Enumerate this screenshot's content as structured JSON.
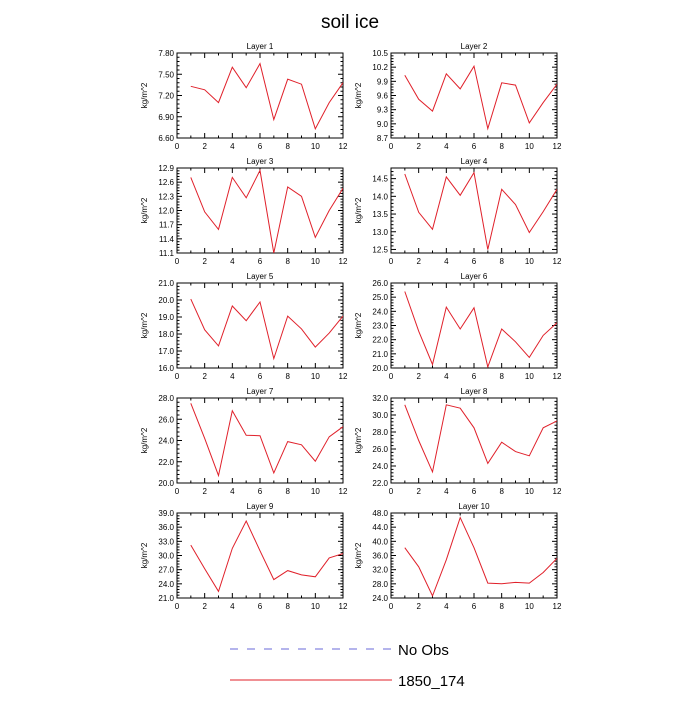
{
  "title": "soil ice",
  "legend": [
    {
      "label": "No Obs",
      "style": "dashed",
      "color": "#6a6ad8"
    },
    {
      "label": "1850_174",
      "style": "solid",
      "color": "#e0202a"
    }
  ],
  "chart_data": [
    {
      "type": "line",
      "title": "Layer 1",
      "ylabel": "kg/m^2",
      "xlim": [
        0,
        12
      ],
      "ylim": [
        6.6,
        7.8
      ],
      "yticks": [
        "6.60",
        "6.90",
        "7.20",
        "7.50",
        "7.80"
      ],
      "xticks": [
        "0",
        "2",
        "4",
        "6",
        "8",
        "10",
        "12"
      ],
      "series": [
        {
          "x": [
            1,
            2,
            3,
            4,
            5,
            6,
            7,
            8,
            9,
            10,
            11,
            12
          ],
          "values": [
            7.33,
            7.28,
            7.1,
            7.6,
            7.31,
            7.65,
            6.86,
            7.43,
            7.36,
            6.73,
            7.1,
            7.38
          ]
        }
      ]
    },
    {
      "type": "line",
      "title": "Layer 2",
      "ylabel": "kg/m^2",
      "xlim": [
        0,
        12
      ],
      "ylim": [
        8.7,
        10.5
      ],
      "yticks": [
        "8.7",
        "9.0",
        "9.3",
        "9.6",
        "9.9",
        "10.2",
        "10.5"
      ],
      "xticks": [
        "0",
        "2",
        "4",
        "6",
        "8",
        "10",
        "12"
      ],
      "series": [
        {
          "x": [
            1,
            2,
            3,
            4,
            5,
            6,
            7,
            8,
            9,
            10,
            11,
            12
          ],
          "values": [
            10.03,
            9.52,
            9.27,
            10.06,
            9.74,
            10.22,
            8.9,
            9.87,
            9.82,
            9.02,
            9.45,
            9.84
          ]
        }
      ]
    },
    {
      "type": "line",
      "title": "Layer 3",
      "ylabel": "kg/m^2",
      "xlim": [
        0,
        12
      ],
      "ylim": [
        11.1,
        12.9
      ],
      "yticks": [
        "11.1",
        "11.4",
        "11.7",
        "12.0",
        "12.3",
        "12.6",
        "12.9"
      ],
      "xticks": [
        "0",
        "2",
        "4",
        "6",
        "8",
        "10",
        "12"
      ],
      "series": [
        {
          "x": [
            1,
            2,
            3,
            4,
            5,
            6,
            7,
            8,
            9,
            10,
            11,
            12
          ],
          "values": [
            12.7,
            11.97,
            11.6,
            12.7,
            12.27,
            12.85,
            11.1,
            12.5,
            12.3,
            11.43,
            12.0,
            12.47
          ]
        }
      ]
    },
    {
      "type": "line",
      "title": "Layer 4",
      "ylabel": "kg/m^2",
      "xlim": [
        0,
        12
      ],
      "ylim": [
        12.4,
        14.8
      ],
      "yticks": [
        "12.5",
        "13.0",
        "13.5",
        "14.0",
        "14.5"
      ],
      "xticks": [
        "0",
        "2",
        "4",
        "6",
        "8",
        "10",
        "12"
      ],
      "series": [
        {
          "x": [
            1,
            2,
            3,
            4,
            5,
            6,
            7,
            8,
            9,
            10,
            11,
            12
          ],
          "values": [
            14.63,
            13.55,
            13.07,
            14.55,
            14.03,
            14.67,
            12.5,
            14.2,
            13.77,
            12.98,
            13.57,
            14.2
          ]
        }
      ]
    },
    {
      "type": "line",
      "title": "Layer 5",
      "ylabel": "kg/m^2",
      "xlim": [
        0,
        12
      ],
      "ylim": [
        16.0,
        21.0
      ],
      "yticks": [
        "16.0",
        "17.0",
        "18.0",
        "19.0",
        "20.0",
        "21.0"
      ],
      "xticks": [
        "0",
        "2",
        "4",
        "6",
        "8",
        "10",
        "12"
      ],
      "series": [
        {
          "x": [
            1,
            2,
            3,
            4,
            5,
            6,
            7,
            8,
            9,
            10,
            11,
            12
          ],
          "values": [
            20.05,
            18.25,
            17.3,
            19.65,
            18.78,
            19.88,
            16.55,
            19.05,
            18.3,
            17.23,
            18.05,
            19.05
          ]
        }
      ]
    },
    {
      "type": "line",
      "title": "Layer 6",
      "ylabel": "kg/m^2",
      "xlim": [
        0,
        12
      ],
      "ylim": [
        20.0,
        26.0
      ],
      "yticks": [
        "20.0",
        "21.0",
        "22.0",
        "23.0",
        "24.0",
        "25.0",
        "26.0"
      ],
      "xticks": [
        "0",
        "2",
        "4",
        "6",
        "8",
        "10",
        "12"
      ],
      "series": [
        {
          "x": [
            1,
            2,
            3,
            4,
            5,
            6,
            7,
            8,
            9,
            10,
            11,
            12
          ],
          "values": [
            25.4,
            22.6,
            20.25,
            24.3,
            22.75,
            24.25,
            20.08,
            22.75,
            21.85,
            20.75,
            22.3,
            23.2
          ]
        }
      ]
    },
    {
      "type": "line",
      "title": "Layer 7",
      "ylabel": "kg/m^2",
      "xlim": [
        0,
        12
      ],
      "ylim": [
        20.0,
        28.0
      ],
      "yticks": [
        "20.0",
        "22.0",
        "24.0",
        "26.0",
        "28.0"
      ],
      "xticks": [
        "0",
        "2",
        "4",
        "6",
        "8",
        "10",
        "12"
      ],
      "series": [
        {
          "x": [
            1,
            2,
            3,
            4,
            5,
            6,
            7,
            8,
            9,
            10,
            11,
            12
          ],
          "values": [
            27.5,
            24.2,
            20.7,
            26.8,
            24.5,
            24.45,
            20.95,
            23.9,
            23.6,
            22.05,
            24.35,
            25.3
          ]
        }
      ]
    },
    {
      "type": "line",
      "title": "Layer 8",
      "ylabel": "kg/m^2",
      "xlim": [
        0,
        12
      ],
      "ylim": [
        22.0,
        32.0
      ],
      "yticks": [
        "22.0",
        "24.0",
        "26.0",
        "28.0",
        "30.0",
        "32.0"
      ],
      "xticks": [
        "0",
        "2",
        "4",
        "6",
        "8",
        "10",
        "12"
      ],
      "series": [
        {
          "x": [
            1,
            2,
            3,
            4,
            5,
            6,
            7,
            8,
            9,
            10,
            11,
            12
          ],
          "values": [
            31.2,
            27.0,
            23.3,
            31.2,
            30.8,
            28.5,
            24.3,
            26.8,
            25.7,
            25.2,
            28.5,
            29.3
          ]
        }
      ]
    },
    {
      "type": "line",
      "title": "Layer 9",
      "ylabel": "kg/m^2",
      "xlim": [
        0,
        12
      ],
      "ylim": [
        21.0,
        39.0
      ],
      "yticks": [
        "21.0",
        "24.0",
        "27.0",
        "30.0",
        "33.0",
        "36.0",
        "39.0"
      ],
      "xticks": [
        "0",
        "2",
        "4",
        "6",
        "8",
        "10",
        "12"
      ],
      "series": [
        {
          "x": [
            1,
            2,
            3,
            4,
            5,
            6,
            7,
            8,
            9,
            10,
            11,
            12
          ],
          "values": [
            32.2,
            27.2,
            22.4,
            31.5,
            37.3,
            31.0,
            24.9,
            26.8,
            25.9,
            25.5,
            29.5,
            30.4
          ]
        }
      ]
    },
    {
      "type": "line",
      "title": "Layer 10",
      "ylabel": "kg/m^2",
      "xlim": [
        0,
        12
      ],
      "ylim": [
        24.0,
        48.0
      ],
      "yticks": [
        "24.0",
        "28.0",
        "32.0",
        "36.0",
        "40.0",
        "44.0",
        "48.0"
      ],
      "xticks": [
        "0",
        "2",
        "4",
        "6",
        "8",
        "10",
        "12"
      ],
      "series": [
        {
          "x": [
            1,
            2,
            3,
            4,
            5,
            6,
            7,
            8,
            9,
            10,
            11,
            12
          ],
          "values": [
            38.2,
            32.8,
            24.6,
            34.8,
            46.7,
            38.2,
            28.2,
            28.0,
            28.4,
            28.2,
            31.2,
            35.2
          ]
        }
      ]
    }
  ]
}
